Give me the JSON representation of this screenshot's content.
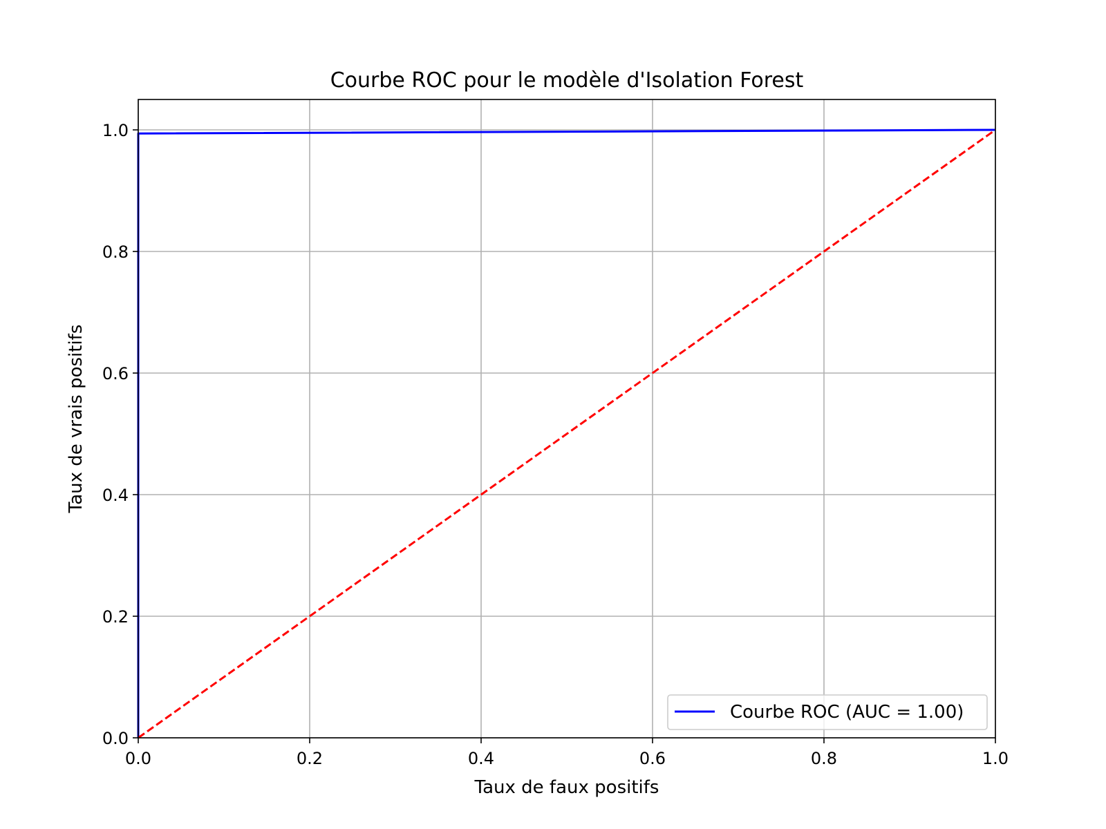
{
  "chart_data": {
    "type": "line",
    "title": "Courbe ROC pour le modèle d'Isolation Forest",
    "xlabel": "Taux de faux positifs",
    "ylabel": "Taux de vrais positifs",
    "xlim": [
      0.0,
      1.0
    ],
    "ylim": [
      0.0,
      1.05
    ],
    "xticks": [
      "0.0",
      "0.2",
      "0.4",
      "0.6",
      "0.8",
      "1.0"
    ],
    "yticks": [
      "0.0",
      "0.2",
      "0.4",
      "0.6",
      "0.8",
      "1.0"
    ],
    "grid": true,
    "legend_position": "lower-right",
    "series": [
      {
        "name": "Courbe ROC (AUC = 1.00)",
        "color": "#0000ff",
        "style": "solid",
        "x": [
          0.0,
          0.0,
          0.0,
          1.0
        ],
        "y": [
          0.0,
          0.994,
          0.994,
          1.0
        ]
      },
      {
        "color": "#ff0000",
        "style": "dashed",
        "x": [
          0.0,
          1.0
        ],
        "y": [
          0.0,
          1.0
        ]
      }
    ]
  }
}
